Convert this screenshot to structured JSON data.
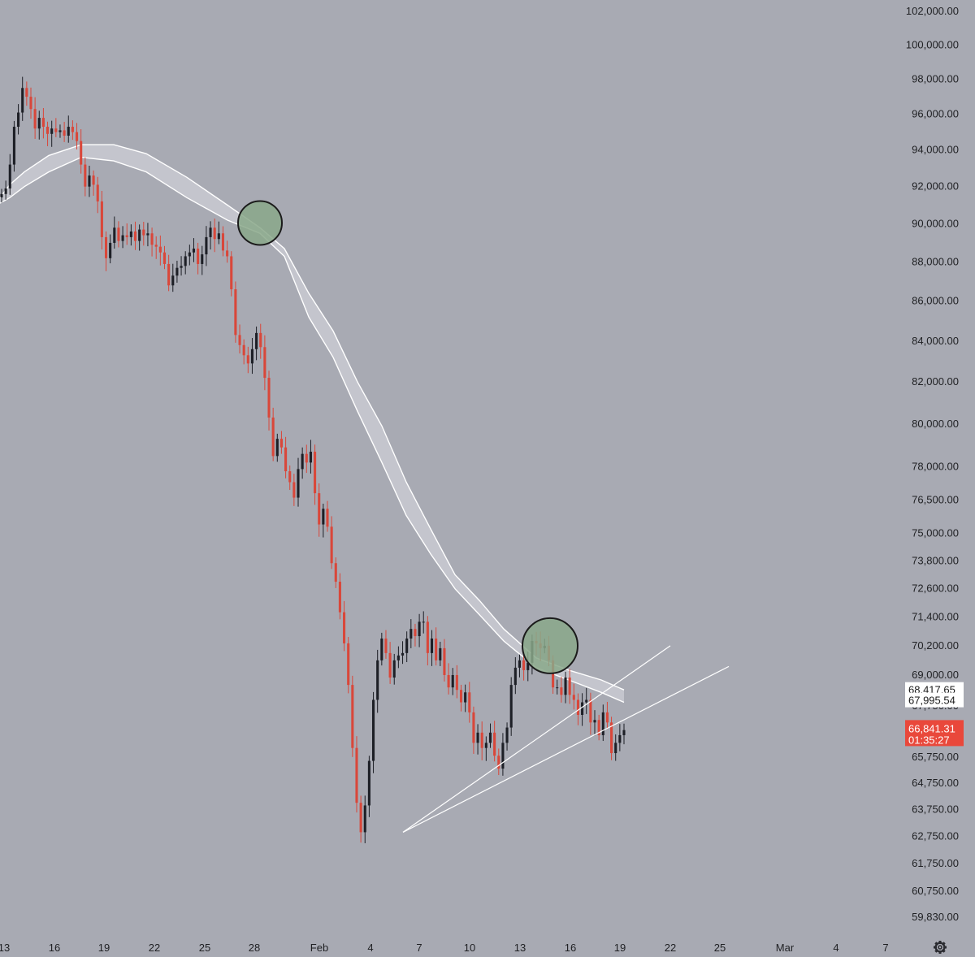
{
  "chart_data": {
    "type": "candlestick",
    "y_axis": {
      "scale": "log",
      "position": "right",
      "ticks": [
        "102,000.00",
        "100,000.00",
        "98,000.00",
        "96,000.00",
        "94,000.00",
        "92,000.00",
        "90,000.00",
        "88,000.00",
        "86,000.00",
        "84,000.00",
        "82,000.00",
        "80,000.00",
        "78,000.00",
        "76,500.00",
        "75,000.00",
        "73,800.00",
        "72,600.00",
        "71,400.00",
        "70,200.00",
        "69,000.00",
        "67,750.00",
        "65,750.00",
        "64,750.00",
        "63,750.00",
        "62,750.00",
        "61,750.00",
        "60,750.00",
        "59,830.00"
      ]
    },
    "x_axis": {
      "ticks": [
        "13",
        "16",
        "19",
        "22",
        "25",
        "28",
        "Feb",
        "4",
        "7",
        "10",
        "13",
        "16",
        "19",
        "22",
        "25",
        "Mar",
        "4",
        "7"
      ]
    },
    "price_tags": [
      {
        "label": "68,417.65",
        "value": 68417.65,
        "color": "#ffffff"
      },
      {
        "label": "67,995.54",
        "value": 67995.54,
        "color": "#ffffff"
      },
      {
        "label": "66,841.31",
        "sub": "01:35:27",
        "value": 66841.31,
        "color": "#e9483b"
      }
    ],
    "closes": [
      91600,
      91900,
      93200,
      95300,
      96100,
      97500,
      97000,
      96300,
      95200,
      95800,
      95300,
      94900,
      95200,
      95000,
      95100,
      94800,
      95300,
      95000,
      94500,
      93200,
      92000,
      92600,
      92100,
      91200,
      89300,
      88200,
      89000,
      89800,
      89100,
      89400,
      89300,
      89600,
      89100,
      89700,
      89400,
      89500,
      88900,
      88800,
      88500,
      87900,
      86800,
      87300,
      87700,
      87800,
      88300,
      88500,
      88700,
      87900,
      88400,
      89300,
      89800,
      89200,
      89500,
      88600,
      88300,
      86600,
      84300,
      83800,
      83300,
      82900,
      83600,
      84400,
      83700,
      82200,
      80300,
      78500,
      79300,
      78900,
      77800,
      77300,
      76600,
      77900,
      78600,
      78200,
      78700,
      76800,
      75400,
      76100,
      75300,
      73700,
      72900,
      71600,
      70300,
      68600,
      66100,
      64000,
      62900,
      63900,
      65600,
      68000,
      69600,
      70500,
      69900,
      68900,
      69600,
      69800,
      69900,
      70500,
      70900,
      70600,
      71200,
      71200,
      69900,
      70500,
      69600,
      70100,
      69000,
      68500,
      69000,
      68400,
      67900,
      68300,
      67500,
      66300,
      66700,
      66100,
      66300,
      66700,
      65800,
      65300,
      66300,
      66900,
      68600,
      69300,
      69600,
      69200,
      69500,
      70400,
      70300,
      70100,
      70200,
      69600,
      68500,
      68500,
      68200,
      68900,
      68200,
      68000,
      67400,
      67900,
      68000,
      67100,
      67200,
      66600,
      67500,
      67100,
      65900,
      66300,
      66600,
      66800
    ],
    "ma_upper": [
      [
        0,
        91400
      ],
      [
        12,
        92100
      ],
      [
        30,
        92800
      ],
      [
        60,
        93700
      ],
      [
        100,
        94300
      ],
      [
        140,
        94300
      ],
      [
        180,
        93800
      ],
      [
        230,
        92500
      ],
      [
        280,
        91000
      ],
      [
        320,
        89800
      ],
      [
        350,
        88700
      ],
      [
        380,
        86400
      ],
      [
        410,
        84500
      ],
      [
        440,
        82000
      ],
      [
        470,
        79900
      ],
      [
        500,
        77300
      ],
      [
        530,
        75200
      ],
      [
        560,
        73200
      ],
      [
        590,
        72100
      ],
      [
        620,
        70900
      ],
      [
        660,
        69700
      ],
      [
        700,
        69200
      ],
      [
        740,
        68800
      ],
      [
        768,
        68400
      ]
    ],
    "ma_lower": [
      [
        0,
        91100
      ],
      [
        12,
        91400
      ],
      [
        30,
        92000
      ],
      [
        60,
        92800
      ],
      [
        100,
        93600
      ],
      [
        140,
        93400
      ],
      [
        180,
        92800
      ],
      [
        230,
        91400
      ],
      [
        280,
        90200
      ],
      [
        320,
        89500
      ],
      [
        350,
        88300
      ],
      [
        380,
        85200
      ],
      [
        410,
        83200
      ],
      [
        440,
        80600
      ],
      [
        470,
        78200
      ],
      [
        500,
        75800
      ],
      [
        530,
        74100
      ],
      [
        560,
        72600
      ],
      [
        590,
        71500
      ],
      [
        620,
        70400
      ],
      [
        660,
        69300
      ],
      [
        700,
        68800
      ],
      [
        740,
        68300
      ],
      [
        768,
        67900
      ]
    ],
    "trendlines": [
      {
        "from": [
          496,
          62900
        ],
        "to": [
          825,
          70200
        ]
      },
      {
        "from": [
          496,
          62900
        ],
        "to": [
          897,
          69350
        ]
      }
    ],
    "highlight_circles": [
      {
        "center_value": 90050,
        "x_center": 320
      },
      {
        "center_value": 70200,
        "x_center": 677
      }
    ],
    "colors": {
      "background": "#a8aab3",
      "up": "#1d1f26",
      "down": "#d9473a",
      "ma": "#ffffff",
      "ma_fill": "#c6c8cf",
      "circle_fill": "#8aa88a",
      "circle_stroke": "#1b1b1b"
    },
    "settings_icon": "gear-icon"
  }
}
